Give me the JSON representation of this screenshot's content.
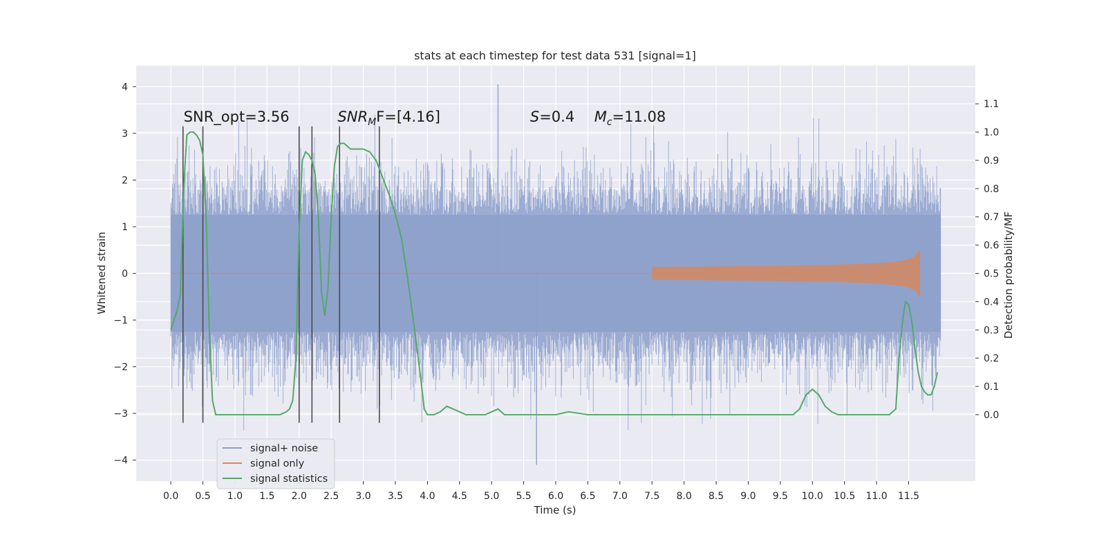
{
  "chart_data": {
    "type": "line",
    "title": "stats at each timestep for test data 531 [signal=1]",
    "xlabel": "Time (s)",
    "ylabel": "Whitened strain",
    "y2label": "Detection probability/MF",
    "xlim": [
      -0.54,
      12.54
    ],
    "ylim": [
      -4.45,
      4.45
    ],
    "y2lim": [
      -0.235,
      1.235
    ],
    "x_ticks": [
      0.0,
      0.5,
      1.0,
      1.5,
      2.0,
      2.5,
      3.0,
      3.5,
      4.0,
      4.5,
      5.0,
      5.5,
      6.0,
      6.5,
      7.0,
      7.5,
      8.0,
      8.5,
      9.0,
      9.5,
      10.0,
      10.5,
      11.0,
      11.5
    ],
    "x_tick_labels": [
      "0.0",
      "0.5",
      "1.0",
      "1.5",
      "2.0",
      "2.5",
      "3.0",
      "3.5",
      "4.0",
      "4.5",
      "5.0",
      "5.5",
      "6.0",
      "6.5",
      "7.0",
      "7.5",
      "8.0",
      "8.5",
      "9.0",
      "9.5",
      "10.0",
      "10.5",
      "11.0",
      "11.5"
    ],
    "y_ticks": [
      -4,
      -3,
      -2,
      -1,
      0,
      1,
      2,
      3,
      4
    ],
    "y_tick_labels": [
      "−4",
      "−3",
      "−2",
      "−1",
      "0",
      "1",
      "2",
      "3",
      "4"
    ],
    "y2_ticks": [
      0.0,
      0.1,
      0.2,
      0.3,
      0.4,
      0.5,
      0.6,
      0.7,
      0.8,
      0.9,
      1.0,
      1.1
    ],
    "y2_tick_labels": [
      "0.0",
      "0.1",
      "0.2",
      "0.3",
      "0.4",
      "0.5",
      "0.6",
      "0.7",
      "0.8",
      "0.9",
      "1.0",
      "1.1"
    ],
    "grid": true,
    "legend_position": "lower-left",
    "annotations": [
      {
        "text": "SNR_opt=3.56",
        "x": 0.2,
        "y": 3.25
      },
      {
        "text": "SNR",
        "sub": "M",
        "tail": "F=[4.16]",
        "x": 2.6,
        "y": 3.25,
        "italic": true
      },
      {
        "text": "S",
        "tail": "=0.4",
        "x": 5.6,
        "y": 3.25,
        "italic": true
      },
      {
        "text": "M",
        "sub": "c",
        "tail": "=11.08",
        "x": 6.6,
        "y": 3.25,
        "italic": true
      }
    ],
    "vertical_markers": [
      0.19,
      0.5,
      2.0,
      2.2,
      2.63,
      3.25
    ],
    "vertical_marker_range": [
      -3.2,
      3.15
    ],
    "series": [
      {
        "name": "signal+ noise",
        "color": "#8da0cb",
        "kind": "noise-band",
        "x_range": [
          0.0,
          12.0
        ],
        "band": [
          -1.25,
          1.25
        ],
        "envelope_typical": [
          -2.0,
          2.2
        ],
        "extremes": {
          "max": 4.05,
          "max_x": 5.1,
          "min": -4.1,
          "min_x": 5.7
        }
      },
      {
        "name": "signal only",
        "color": "#dd8452",
        "kind": "chirp",
        "x_range": [
          0.0,
          11.68
        ],
        "peak_amplitude": 0.5,
        "peak_x": 11.68
      },
      {
        "name": "signal statistics",
        "color": "#55a868",
        "axis": "right",
        "x": [
          0.0,
          0.1,
          0.15,
          0.2,
          0.25,
          0.3,
          0.35,
          0.4,
          0.45,
          0.5,
          0.55,
          0.6,
          0.65,
          0.7,
          0.8,
          1.0,
          1.5,
          1.7,
          1.8,
          1.85,
          1.9,
          1.95,
          2.0,
          2.05,
          2.1,
          2.15,
          2.2,
          2.25,
          2.3,
          2.35,
          2.4,
          2.45,
          2.5,
          2.55,
          2.6,
          2.65,
          2.7,
          2.75,
          2.8,
          2.9,
          3.0,
          3.1,
          3.2,
          3.3,
          3.4,
          3.5,
          3.6,
          3.7,
          3.8,
          3.9,
          3.95,
          4.0,
          4.1,
          4.2,
          4.3,
          4.4,
          4.5,
          4.6,
          4.7,
          4.8,
          4.9,
          5.0,
          5.1,
          5.2,
          5.3,
          5.5,
          5.7,
          6.0,
          6.2,
          6.5,
          7.0,
          8.0,
          8.3,
          8.5,
          9.0,
          9.5,
          9.7,
          9.8,
          9.9,
          10.0,
          10.1,
          10.2,
          10.3,
          10.4,
          10.5,
          11.0,
          11.2,
          11.3,
          11.35,
          11.4,
          11.45,
          11.5,
          11.55,
          11.6,
          11.65,
          11.7,
          11.75,
          11.8,
          11.85,
          11.9,
          11.95
        ],
        "y": [
          0.3,
          0.37,
          0.43,
          0.8,
          0.99,
          1.0,
          1.0,
          0.99,
          0.97,
          0.92,
          0.7,
          0.3,
          0.05,
          0.0,
          0.0,
          0.0,
          0.0,
          0.0,
          0.01,
          0.02,
          0.05,
          0.2,
          0.65,
          0.9,
          0.93,
          0.92,
          0.9,
          0.85,
          0.7,
          0.43,
          0.35,
          0.45,
          0.7,
          0.88,
          0.95,
          0.96,
          0.96,
          0.95,
          0.94,
          0.94,
          0.94,
          0.93,
          0.9,
          0.84,
          0.78,
          0.71,
          0.62,
          0.47,
          0.3,
          0.12,
          0.02,
          0.0,
          0.0,
          0.01,
          0.03,
          0.02,
          0.01,
          0.0,
          0.0,
          0.0,
          0.0,
          0.01,
          0.02,
          0.0,
          0.0,
          0.0,
          0.0,
          0.0,
          0.01,
          0.0,
          0.0,
          0.0,
          0.0,
          0.0,
          0.0,
          0.0,
          0.0,
          0.02,
          0.07,
          0.09,
          0.07,
          0.03,
          0.01,
          0.0,
          0.0,
          0.0,
          0.0,
          0.02,
          0.2,
          0.32,
          0.4,
          0.39,
          0.33,
          0.23,
          0.15,
          0.1,
          0.08,
          0.07,
          0.07,
          0.1,
          0.15
        ]
      }
    ]
  }
}
